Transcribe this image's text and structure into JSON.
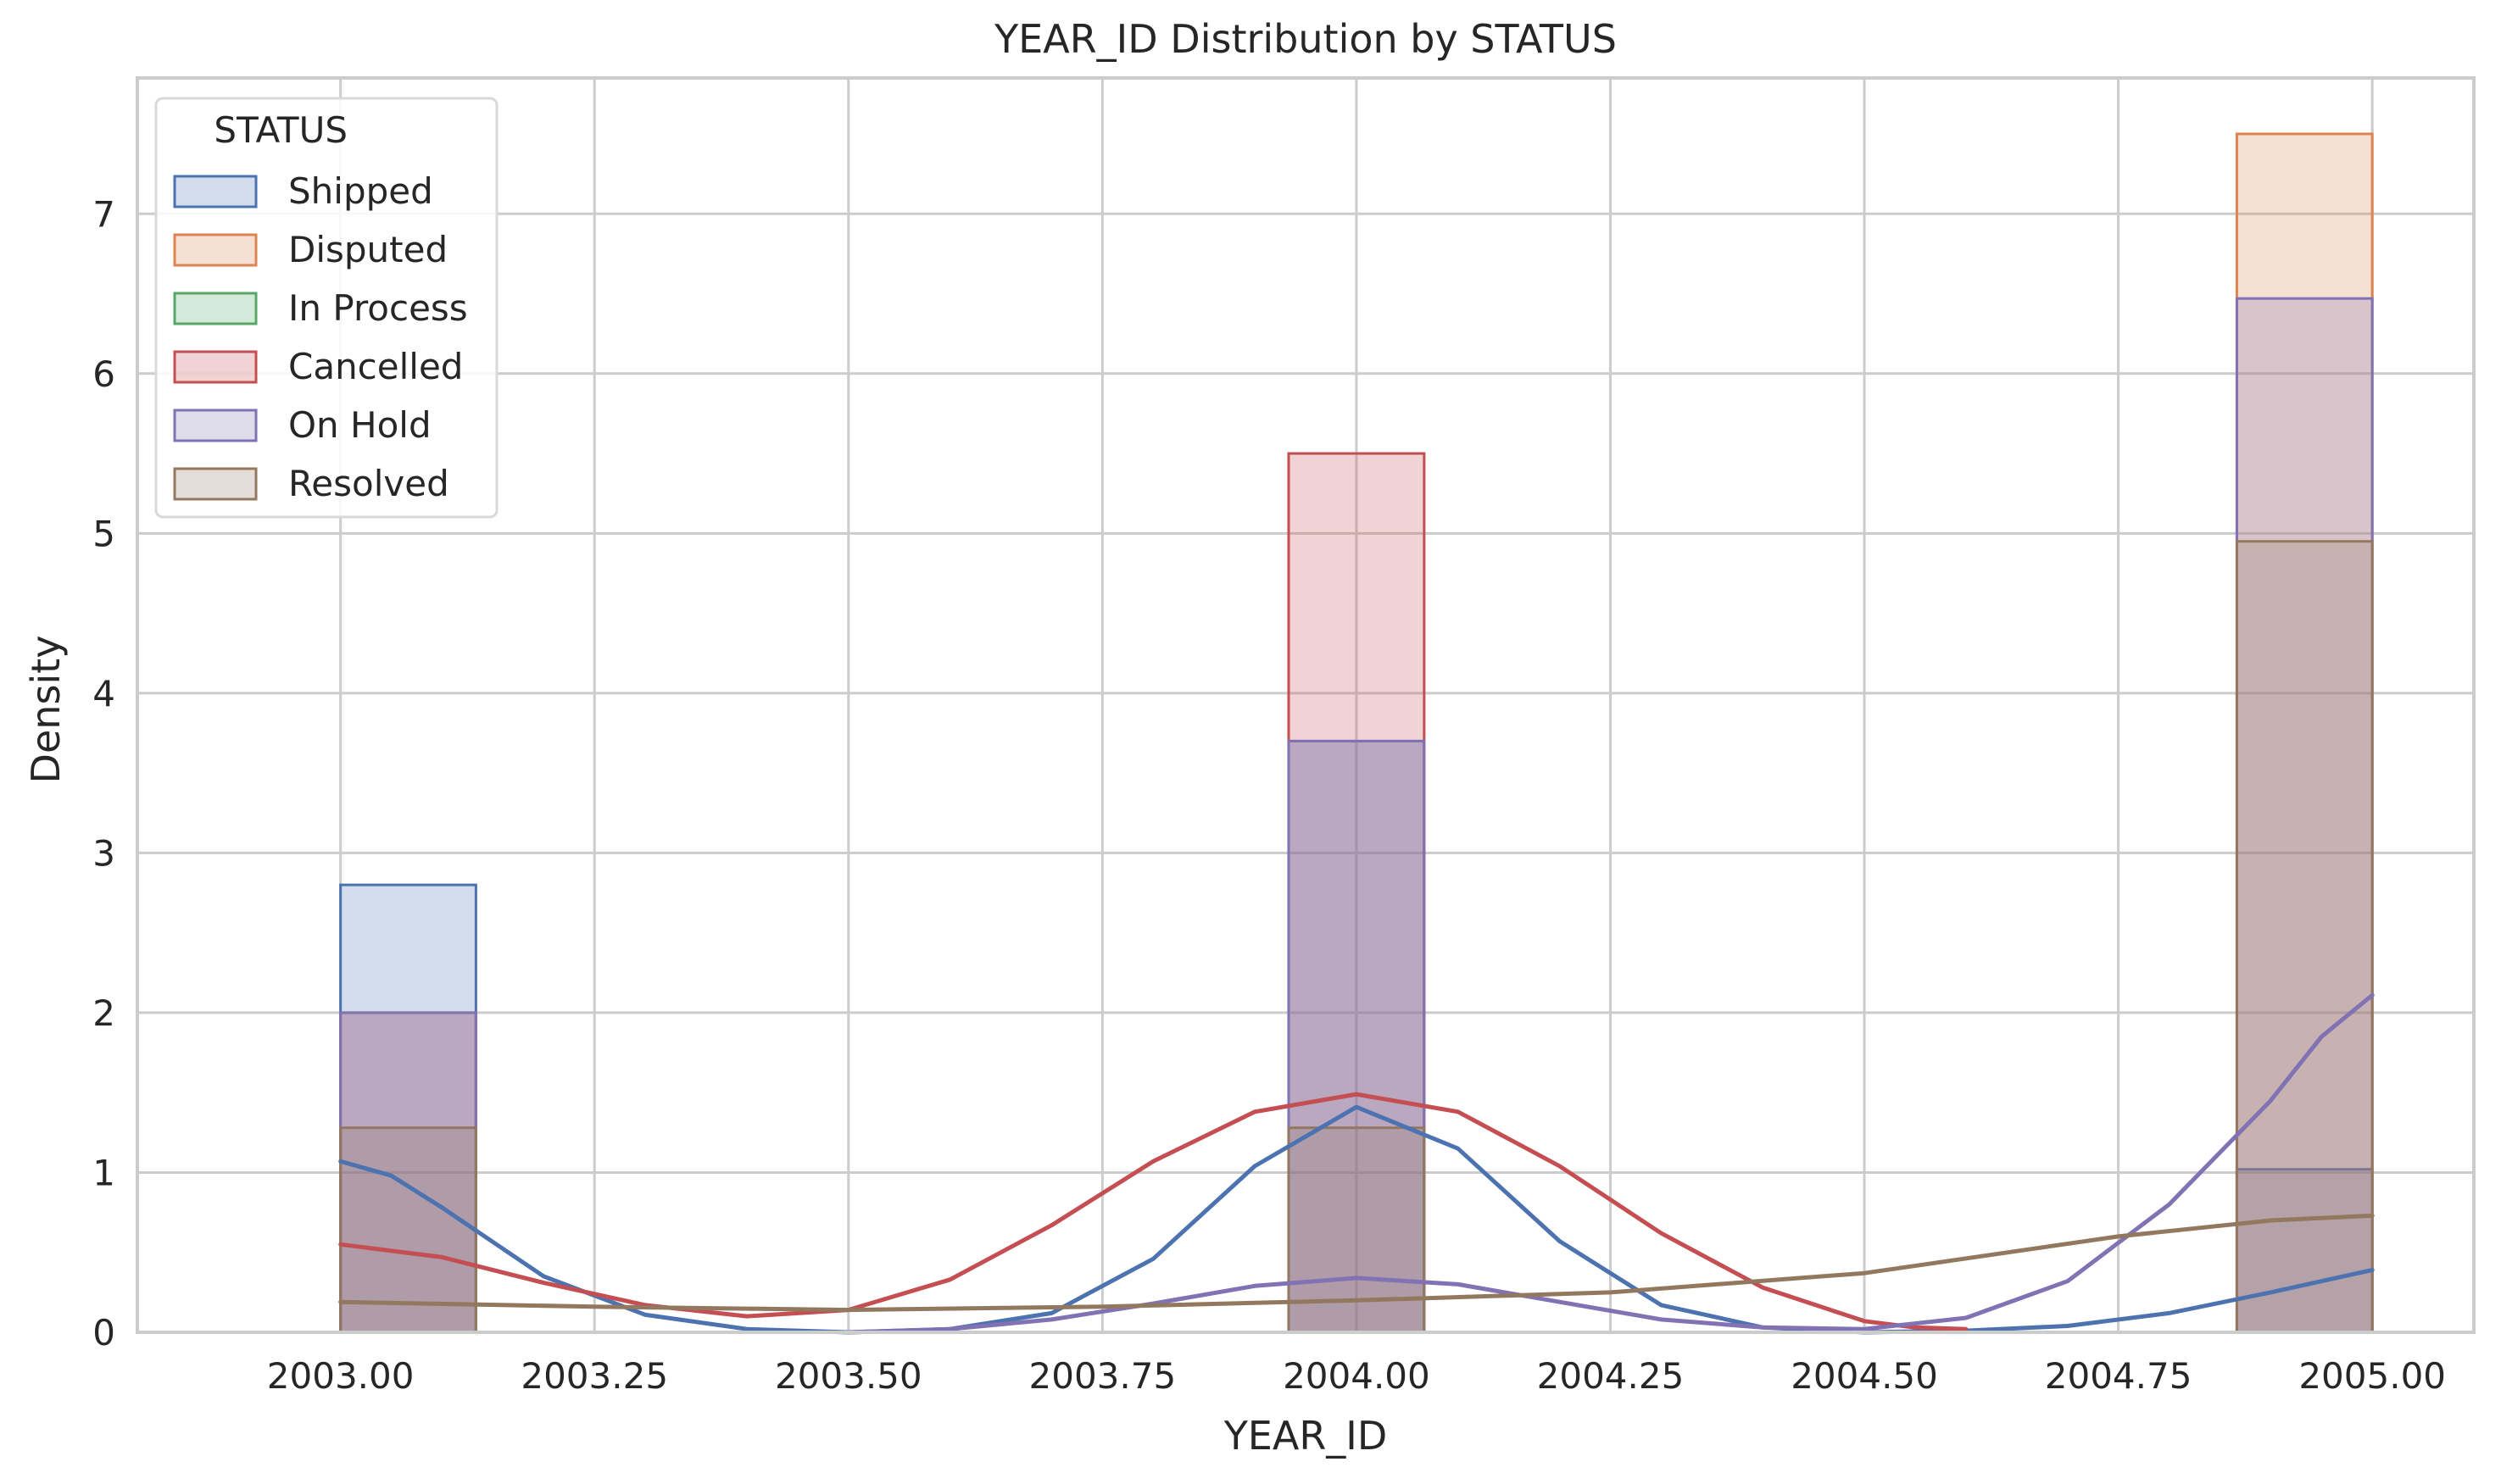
{
  "chart_data": {
    "type": "histogram",
    "title": "YEAR_ID Distribution by STATUS",
    "xlabel": "YEAR_ID",
    "ylabel": "Density",
    "xlim": [
      2002.8,
      2005.1
    ],
    "ylim": [
      0,
      7.85
    ],
    "xticks": [
      2003.0,
      2003.25,
      2003.5,
      2003.75,
      2004.0,
      2004.25,
      2004.5,
      2004.75,
      2005.0
    ],
    "xtick_labels": [
      "2003.00",
      "2003.25",
      "2003.50",
      "2003.75",
      "2004.00",
      "2004.25",
      "2004.50",
      "2004.75",
      "2005.00"
    ],
    "yticks": [
      0,
      1,
      2,
      3,
      4,
      5,
      6,
      7
    ],
    "ytick_labels": [
      "0",
      "1",
      "2",
      "3",
      "4",
      "5",
      "6",
      "7"
    ],
    "grid": true,
    "legend": {
      "title": "STATUS",
      "placement": "top-left"
    },
    "bin_width": 0.1333,
    "series": [
      {
        "name": "Shipped",
        "color": "#4c72b0",
        "bins": [
          [
            2003.0,
            2003.1333,
            2.8
          ],
          [
            2003.9333,
            2004.0667,
            3.7
          ],
          [
            2004.8667,
            2005.0,
            1.02
          ]
        ],
        "kde": [
          [
            2003.0,
            1.07
          ],
          [
            2003.05,
            0.98
          ],
          [
            2003.1,
            0.78
          ],
          [
            2003.2,
            0.35
          ],
          [
            2003.3,
            0.11
          ],
          [
            2003.4,
            0.02
          ],
          [
            2003.5,
            0.0
          ],
          [
            2003.6,
            0.02
          ],
          [
            2003.7,
            0.12
          ],
          [
            2003.8,
            0.46
          ],
          [
            2003.9,
            1.04
          ],
          [
            2004.0,
            1.41
          ],
          [
            2004.1,
            1.15
          ],
          [
            2004.2,
            0.57
          ],
          [
            2004.3,
            0.17
          ],
          [
            2004.4,
            0.03
          ],
          [
            2004.5,
            0.0
          ],
          [
            2004.6,
            0.01
          ],
          [
            2004.7,
            0.04
          ],
          [
            2004.8,
            0.12
          ],
          [
            2004.9,
            0.25
          ],
          [
            2005.0,
            0.39
          ]
        ]
      },
      {
        "name": "Disputed",
        "color": "#dd8452",
        "bins": [
          [
            2004.8667,
            2005.0,
            7.5
          ]
        ],
        "kde": []
      },
      {
        "name": "In Process",
        "color": "#55a868",
        "bins": [],
        "kde": []
      },
      {
        "name": "Cancelled",
        "color": "#c44e52",
        "bins": [
          [
            2003.0,
            2003.1333,
            2.0
          ],
          [
            2003.9333,
            2004.0667,
            5.5
          ]
        ],
        "kde": [
          [
            2003.0,
            0.55
          ],
          [
            2003.1,
            0.47
          ],
          [
            2003.2,
            0.31
          ],
          [
            2003.3,
            0.17
          ],
          [
            2003.4,
            0.1
          ],
          [
            2003.5,
            0.14
          ],
          [
            2003.6,
            0.33
          ],
          [
            2003.7,
            0.67
          ],
          [
            2003.8,
            1.07
          ],
          [
            2003.9,
            1.38
          ],
          [
            2004.0,
            1.49
          ],
          [
            2004.1,
            1.38
          ],
          [
            2004.2,
            1.04
          ],
          [
            2004.3,
            0.62
          ],
          [
            2004.4,
            0.28
          ],
          [
            2004.5,
            0.07
          ],
          [
            2004.55,
            0.03
          ],
          [
            2004.6,
            0.02
          ]
        ]
      },
      {
        "name": "On Hold",
        "color": "#8172b3",
        "bins": [
          [
            2003.0,
            2003.1333,
            2.0
          ],
          [
            2003.9333,
            2004.0667,
            3.7
          ],
          [
            2004.8667,
            2005.0,
            6.47
          ]
        ],
        "kde": [
          [
            2003.5,
            0.0
          ],
          [
            2003.6,
            0.02
          ],
          [
            2003.7,
            0.08
          ],
          [
            2003.8,
            0.18
          ],
          [
            2003.9,
            0.29
          ],
          [
            2004.0,
            0.34
          ],
          [
            2004.1,
            0.3
          ],
          [
            2004.2,
            0.19
          ],
          [
            2004.3,
            0.08
          ],
          [
            2004.4,
            0.03
          ],
          [
            2004.5,
            0.02
          ],
          [
            2004.6,
            0.09
          ],
          [
            2004.7,
            0.32
          ],
          [
            2004.8,
            0.8
          ],
          [
            2004.9,
            1.45
          ],
          [
            2004.95,
            1.85
          ],
          [
            2005.0,
            2.11
          ]
        ]
      },
      {
        "name": "Resolved",
        "color": "#937860",
        "bins": [
          [
            2003.0,
            2003.1333,
            1.28
          ],
          [
            2003.9333,
            2004.0667,
            1.28
          ],
          [
            2004.8667,
            2005.0,
            4.95
          ]
        ],
        "kde": [
          [
            2003.0,
            0.19
          ],
          [
            2003.25,
            0.16
          ],
          [
            2003.5,
            0.14
          ],
          [
            2003.75,
            0.16
          ],
          [
            2004.0,
            0.2
          ],
          [
            2004.25,
            0.25
          ],
          [
            2004.5,
            0.37
          ],
          [
            2004.75,
            0.6
          ],
          [
            2004.9,
            0.7
          ],
          [
            2005.0,
            0.73
          ]
        ]
      }
    ]
  }
}
